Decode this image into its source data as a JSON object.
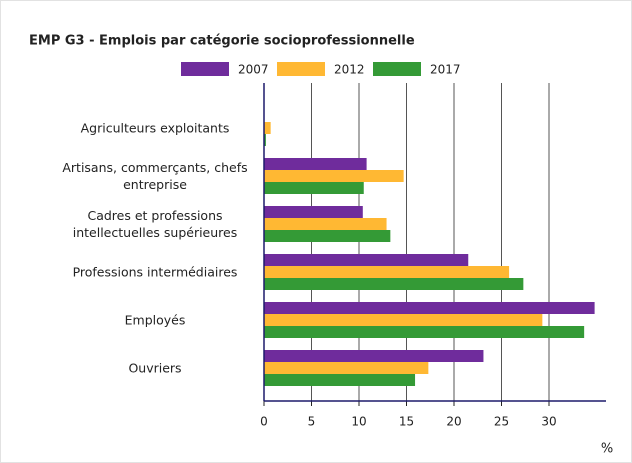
{
  "chart_data": {
    "type": "barh",
    "title": "EMP G3 - Emplois par catégorie socioprofessionnelle",
    "xlabel": "%",
    "categories": [
      "Agriculteurs exploitants",
      "Artisans, commerçants, chefs entreprise",
      "Cadres et professions intellectuelles supérieures",
      "Professions intermédiaires",
      "Employés",
      "Ouvriers"
    ],
    "series": [
      {
        "name": "2007",
        "color": "#6f2c9c",
        "values": [
          0,
          10.8,
          10.4,
          21.5,
          34.8,
          23.1
        ]
      },
      {
        "name": "2012",
        "color": "#ffb833",
        "values": [
          0.7,
          14.7,
          12.9,
          25.8,
          29.3,
          17.3
        ]
      },
      {
        "name": "2017",
        "color": "#349a36",
        "values": [
          0.2,
          10.5,
          13.3,
          27.3,
          33.7,
          15.9
        ]
      }
    ],
    "xlim": [
      0,
      36
    ],
    "xticks": [
      0,
      5,
      10,
      15,
      20,
      25,
      30
    ],
    "grid": true,
    "legend": "top"
  }
}
